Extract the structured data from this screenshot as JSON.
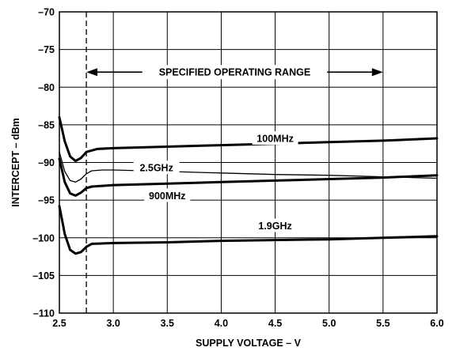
{
  "chart_data": {
    "type": "line",
    "xlabel": "SUPPLY VOLTAGE – V",
    "ylabel": "INTERCEPT – dBm",
    "xlim": [
      2.5,
      6.0
    ],
    "ylim": [
      -110,
      -70
    ],
    "x_ticks": [
      2.5,
      3.0,
      3.5,
      4.0,
      4.5,
      5.0,
      5.5,
      6.0
    ],
    "x_tick_labels": [
      "2.5",
      "3.0",
      "3.5",
      "4.0",
      "4.5",
      "5.0",
      "5.5",
      "6.0"
    ],
    "y_ticks": [
      -70,
      -75,
      -80,
      -85,
      -90,
      -95,
      -100,
      -105,
      -110
    ],
    "y_tick_labels": [
      "–70",
      "–75",
      "–80",
      "–85",
      "–90",
      "–95",
      "–100",
      "–105",
      "–110"
    ],
    "grid": "on",
    "legend": "none",
    "annotations": [
      {
        "text": "SPECIFIED OPERATING RANGE",
        "x_start": 2.75,
        "x_end": 5.5,
        "y": -78,
        "arrows": "both"
      }
    ],
    "reference_line": {
      "x": 2.75,
      "style": "dashed"
    },
    "series": [
      {
        "name": "100MHz",
        "stroke": "thick",
        "label_at": {
          "x": 4.5,
          "y": -86.8
        },
        "points": [
          [
            2.5,
            -84
          ],
          [
            2.55,
            -87.2
          ],
          [
            2.6,
            -89.2
          ],
          [
            2.65,
            -89.8
          ],
          [
            2.7,
            -89.4
          ],
          [
            2.75,
            -88.6
          ],
          [
            2.85,
            -88.2
          ],
          [
            3.0,
            -88.1
          ],
          [
            3.5,
            -87.9
          ],
          [
            4.0,
            -87.7
          ],
          [
            4.5,
            -87.5
          ],
          [
            5.0,
            -87.3
          ],
          [
            5.5,
            -87.1
          ],
          [
            6.0,
            -86.8
          ]
        ]
      },
      {
        "name": "2.5GHz",
        "stroke": "thin",
        "label_at": {
          "x": 3.4,
          "y": -90.7
        },
        "points": [
          [
            2.5,
            -88.6
          ],
          [
            2.55,
            -91.2
          ],
          [
            2.6,
            -92.4
          ],
          [
            2.65,
            -92.6
          ],
          [
            2.7,
            -92.2
          ],
          [
            2.75,
            -91.5
          ],
          [
            2.8,
            -91.1
          ],
          [
            2.9,
            -91.0
          ],
          [
            3.0,
            -91.0
          ],
          [
            3.5,
            -91.2
          ],
          [
            4.0,
            -91.4
          ],
          [
            4.5,
            -91.6
          ],
          [
            5.0,
            -91.7
          ],
          [
            5.5,
            -91.9
          ],
          [
            6.0,
            -92.1
          ]
        ]
      },
      {
        "name": "900MHz",
        "stroke": "thick",
        "label_at": {
          "x": 3.5,
          "y": -94.4
        },
        "points": [
          [
            2.5,
            -89.5
          ],
          [
            2.55,
            -92.6
          ],
          [
            2.6,
            -94.1
          ],
          [
            2.65,
            -94.4
          ],
          [
            2.7,
            -94.0
          ],
          [
            2.75,
            -93.4
          ],
          [
            2.8,
            -93.2
          ],
          [
            3.0,
            -93.0
          ],
          [
            3.5,
            -92.8
          ],
          [
            4.0,
            -92.6
          ],
          [
            4.5,
            -92.4
          ],
          [
            5.0,
            -92.2
          ],
          [
            5.5,
            -92.0
          ],
          [
            6.0,
            -91.7
          ]
        ]
      },
      {
        "name": "1.9GHz",
        "stroke": "thick",
        "label_at": {
          "x": 4.5,
          "y": -98.4
        },
        "points": [
          [
            2.5,
            -95.8
          ],
          [
            2.55,
            -99.5
          ],
          [
            2.6,
            -101.6
          ],
          [
            2.65,
            -102.1
          ],
          [
            2.7,
            -101.9
          ],
          [
            2.75,
            -101.2
          ],
          [
            2.8,
            -100.8
          ],
          [
            3.0,
            -100.7
          ],
          [
            3.5,
            -100.6
          ],
          [
            4.0,
            -100.4
          ],
          [
            4.5,
            -100.3
          ],
          [
            5.0,
            -100.2
          ],
          [
            5.5,
            -100.0
          ],
          [
            6.0,
            -99.8
          ]
        ]
      }
    ]
  }
}
